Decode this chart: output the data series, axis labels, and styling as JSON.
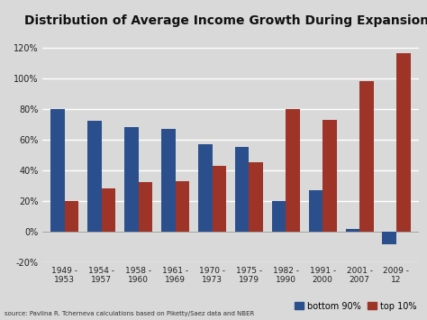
{
  "categories": [
    "1949 -\n1953",
    "1954 -\n1957",
    "1958 -\n1960",
    "1961 -\n1969",
    "1970 -\n1973",
    "1975 -\n1979",
    "1982 -\n1990",
    "1991 -\n2000",
    "2001 -\n2007",
    "2009 -\n12"
  ],
  "bottom90": [
    80,
    72,
    68,
    67,
    57,
    55,
    20,
    27,
    2,
    -8
  ],
  "top10": [
    20,
    28,
    32,
    33,
    43,
    45,
    80,
    73,
    98,
    116
  ],
  "bottom90_color": "#2b4f8c",
  "top10_color": "#9e3328",
  "title": "Distribution of Average Income Growth During Expansions",
  "title_fontsize": 10,
  "ylim": [
    -20,
    130
  ],
  "yticks": [
    -20,
    0,
    20,
    40,
    60,
    80,
    100,
    120
  ],
  "ytick_labels": [
    "-20%",
    "0%",
    "20%",
    "40%",
    "60%",
    "80%",
    "100%",
    "120%"
  ],
  "source_text": "source: Pavlina R. Tcherneva calculations based on Piketty/Saez data and NBER",
  "legend_labels": [
    "bottom 90%",
    "top 10%"
  ],
  "bg_color": "#d9d9d9",
  "grid_color": "#ffffff",
  "bar_width": 0.38
}
